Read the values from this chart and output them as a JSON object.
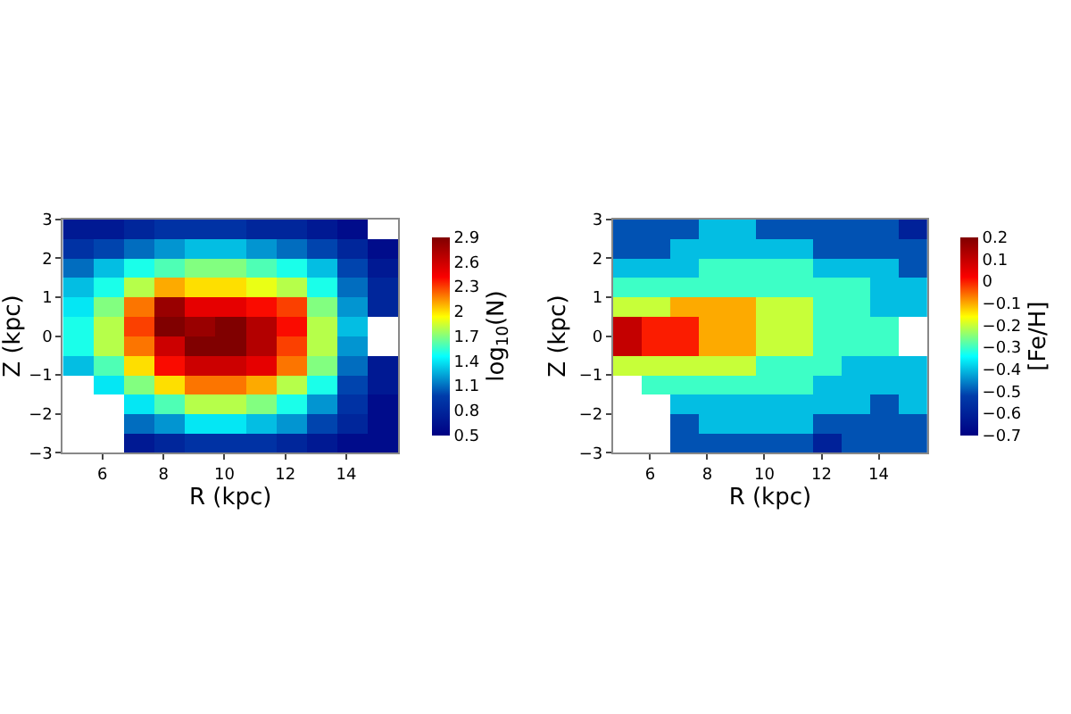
{
  "chart_data": [
    {
      "type": "heatmap",
      "xlabel": "R (kpc)",
      "ylabel": "Z (kpc)",
      "clabel": "log$_{10}$(N)",
      "x": [
        5.2,
        6.2,
        7.2,
        8.2,
        9.2,
        10.2,
        11.2,
        12.2,
        13.2,
        14.2,
        15.2
      ],
      "cells": [
        [
          0.7,
          0.7,
          0.8,
          0.9,
          0.9,
          0.9,
          0.8,
          0.8,
          0.7,
          0.6,
          null
        ],
        [
          0.9,
          1.0,
          1.1,
          1.2,
          1.3,
          1.3,
          1.2,
          1.1,
          1.0,
          0.8,
          0.6
        ],
        [
          1.1,
          1.3,
          1.5,
          1.6,
          1.7,
          1.7,
          1.6,
          1.5,
          1.3,
          1.0,
          0.7
        ],
        [
          1.3,
          1.5,
          1.8,
          2.1,
          2.0,
          2.0,
          1.9,
          1.8,
          1.5,
          1.1,
          0.8
        ],
        [
          1.4,
          1.7,
          2.2,
          2.8,
          2.5,
          2.5,
          2.4,
          2.3,
          1.7,
          1.2,
          0.8
        ],
        [
          1.5,
          1.8,
          2.3,
          2.9,
          2.8,
          2.9,
          2.7,
          2.4,
          1.8,
          1.3,
          null
        ],
        [
          1.5,
          1.8,
          2.2,
          2.6,
          2.9,
          2.9,
          2.7,
          2.3,
          1.8,
          1.2,
          null
        ],
        [
          1.3,
          1.6,
          2.0,
          2.4,
          2.6,
          2.6,
          2.5,
          2.2,
          1.7,
          1.1,
          0.7
        ],
        [
          null,
          1.4,
          1.7,
          2.0,
          2.2,
          2.2,
          2.1,
          1.8,
          1.5,
          1.0,
          0.7
        ],
        [
          null,
          null,
          1.4,
          1.6,
          1.8,
          1.8,
          1.7,
          1.5,
          1.2,
          0.9,
          0.6
        ],
        [
          null,
          null,
          1.1,
          1.2,
          1.4,
          1.4,
          1.3,
          1.2,
          1.0,
          0.8,
          0.6
        ],
        [
          null,
          null,
          0.7,
          0.8,
          0.9,
          0.9,
          0.9,
          0.8,
          0.7,
          0.6,
          0.6
        ]
      ],
      "xlim": [
        4.7,
        15.7
      ],
      "xticks": [
        6,
        8,
        10,
        12,
        14
      ],
      "ylim": [
        -3,
        3
      ],
      "yticks": [
        -3,
        -2,
        -1,
        0,
        1,
        2,
        3
      ],
      "clim": [
        0.5,
        2.9
      ],
      "cticks": [
        0.5,
        0.8,
        1.1,
        1.4,
        1.7,
        2.0,
        2.3,
        2.6,
        2.9
      ]
    },
    {
      "type": "heatmap",
      "xlabel": "R (kpc)",
      "ylabel": "Z (kpc)",
      "clabel": "[Fe/H]",
      "x": [
        5.2,
        6.2,
        7.2,
        8.2,
        9.2,
        10.2,
        11.2,
        12.2,
        13.2,
        14.2,
        15.2
      ],
      "cells": [
        [
          -0.5,
          -0.5,
          -0.5,
          -0.4,
          -0.4,
          -0.5,
          -0.5,
          -0.5,
          -0.5,
          -0.5,
          -0.6
        ],
        [
          -0.5,
          -0.5,
          -0.4,
          -0.4,
          -0.4,
          -0.4,
          -0.4,
          -0.5,
          -0.5,
          -0.5,
          -0.5
        ],
        [
          -0.4,
          -0.4,
          -0.4,
          -0.3,
          -0.3,
          -0.3,
          -0.3,
          -0.4,
          -0.4,
          -0.4,
          -0.5
        ],
        [
          -0.3,
          -0.3,
          -0.3,
          -0.3,
          -0.3,
          -0.3,
          -0.3,
          -0.3,
          -0.3,
          -0.4,
          -0.4
        ],
        [
          -0.2,
          -0.2,
          -0.1,
          -0.1,
          -0.1,
          -0.2,
          -0.2,
          -0.3,
          -0.3,
          -0.4,
          -0.4
        ],
        [
          0.1,
          0.0,
          0.0,
          -0.1,
          -0.1,
          -0.2,
          -0.2,
          -0.3,
          -0.3,
          -0.3,
          null
        ],
        [
          0.1,
          0.0,
          0.0,
          -0.1,
          -0.1,
          -0.2,
          -0.2,
          -0.3,
          -0.3,
          -0.3,
          null
        ],
        [
          -0.2,
          -0.2,
          -0.2,
          -0.2,
          -0.2,
          -0.3,
          -0.3,
          -0.3,
          -0.4,
          -0.4,
          -0.4
        ],
        [
          null,
          -0.3,
          -0.3,
          -0.3,
          -0.3,
          -0.3,
          -0.3,
          -0.4,
          -0.4,
          -0.4,
          -0.4
        ],
        [
          null,
          null,
          -0.4,
          -0.4,
          -0.4,
          -0.4,
          -0.4,
          -0.4,
          -0.4,
          -0.5,
          -0.4
        ],
        [
          null,
          null,
          -0.5,
          -0.4,
          -0.4,
          -0.4,
          -0.4,
          -0.5,
          -0.5,
          -0.5,
          -0.5
        ],
        [
          null,
          null,
          -0.5,
          -0.5,
          -0.5,
          -0.5,
          -0.5,
          -0.6,
          -0.5,
          -0.5,
          -0.5
        ]
      ],
      "xlim": [
        4.7,
        15.7
      ],
      "xticks": [
        6,
        8,
        10,
        12,
        14
      ],
      "ylim": [
        -3,
        3
      ],
      "yticks": [
        -3,
        -2,
        -1,
        0,
        1,
        2,
        3
      ],
      "clim": [
        -0.7,
        0.2
      ],
      "cticks": [
        -0.7,
        -0.6,
        -0.5,
        -0.4,
        -0.3,
        -0.2,
        -0.1,
        0.0,
        0.1,
        0.2
      ]
    }
  ]
}
